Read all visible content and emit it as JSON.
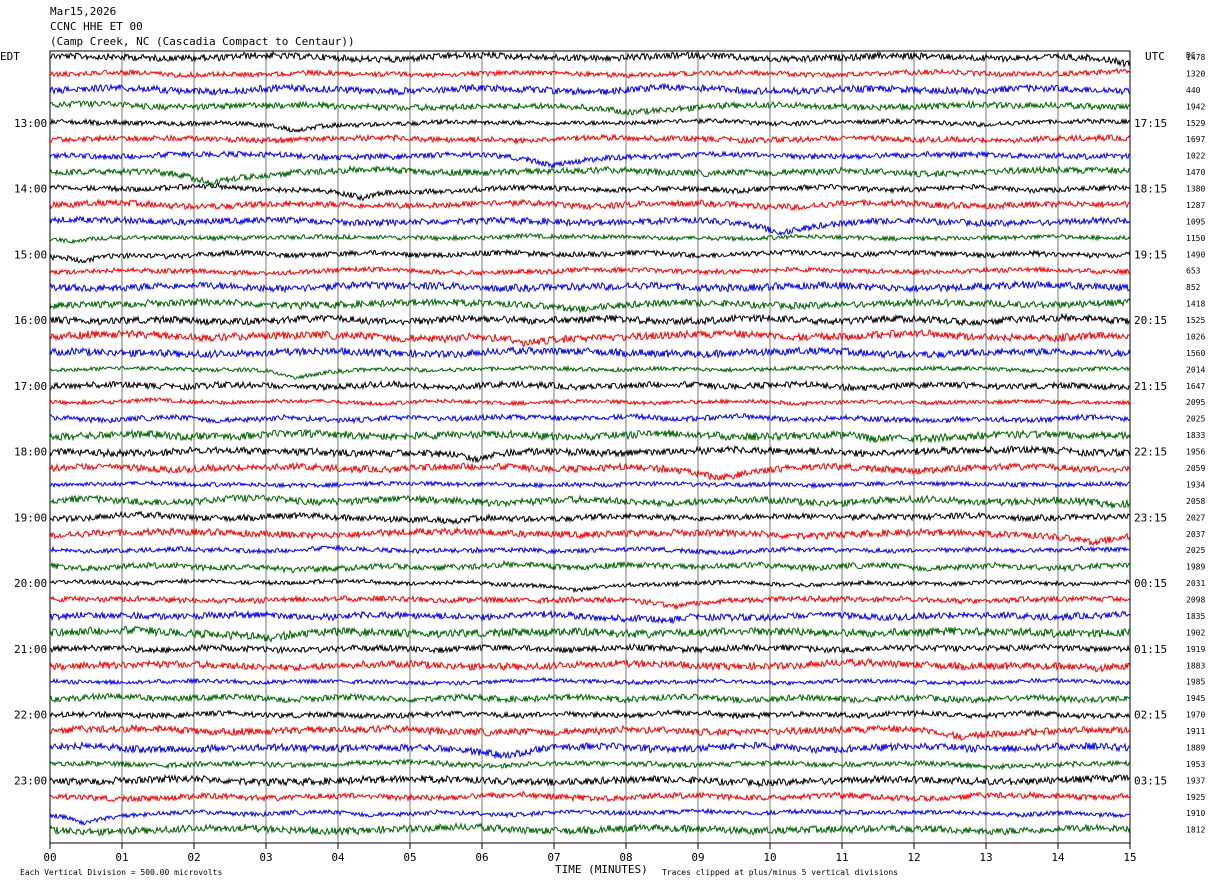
{
  "header": {
    "date": "Mar15,2026",
    "station": "CCNC HHE ET 00",
    "location": "(Camp Creek, NC (Cascadia Compact to Centaur))"
  },
  "chart_data": {
    "type": "line",
    "title": "CCNC HHE ET 00",
    "left_axis_label": "EDT",
    "right_axis_label": "UTC",
    "dc_label": "DC",
    "xlabel": "TIME (MINUTES)",
    "xlim": [
      0,
      15
    ],
    "x_ticks": [
      "00",
      "01",
      "02",
      "03",
      "04",
      "05",
      "06",
      "07",
      "08",
      "09",
      "10",
      "11",
      "12",
      "13",
      "14",
      "15"
    ],
    "grid": true,
    "left_hour_labels": [
      "13:00",
      "14:00",
      "15:00",
      "16:00",
      "17:00",
      "18:00",
      "19:00",
      "20:00",
      "21:00",
      "22:00",
      "23:00"
    ],
    "right_hour_labels": [
      "17:15",
      "18:15",
      "19:15",
      "20:15",
      "21:15",
      "22:15",
      "23:15",
      "00:15",
      "01:15",
      "02:15",
      "03:15"
    ],
    "series_colors": [
      "#000000",
      "#ff0000",
      "#0000ff",
      "#006400"
    ],
    "dc_offsets": [
      1478,
      1320,
      440,
      1942,
      1529,
      1697,
      1022,
      1470,
      1380,
      1287,
      1095,
      1150,
      1490,
      653,
      852,
      1418,
      1525,
      1026,
      1560,
      2014,
      1647,
      2095,
      2025,
      1833,
      1956,
      2059,
      1934,
      2058,
      2027,
      2037,
      2025,
      1989,
      2031,
      2098,
      1835,
      1902,
      1919,
      1883,
      1985,
      1945,
      1970,
      1911,
      1889,
      1953,
      1937,
      1925,
      1910,
      1812
    ],
    "footer_scale": "Each Vertical Division =  500.00 microvolts",
    "footer_clip": "Traces clipped at plus/minus 5 vertical divisions"
  }
}
